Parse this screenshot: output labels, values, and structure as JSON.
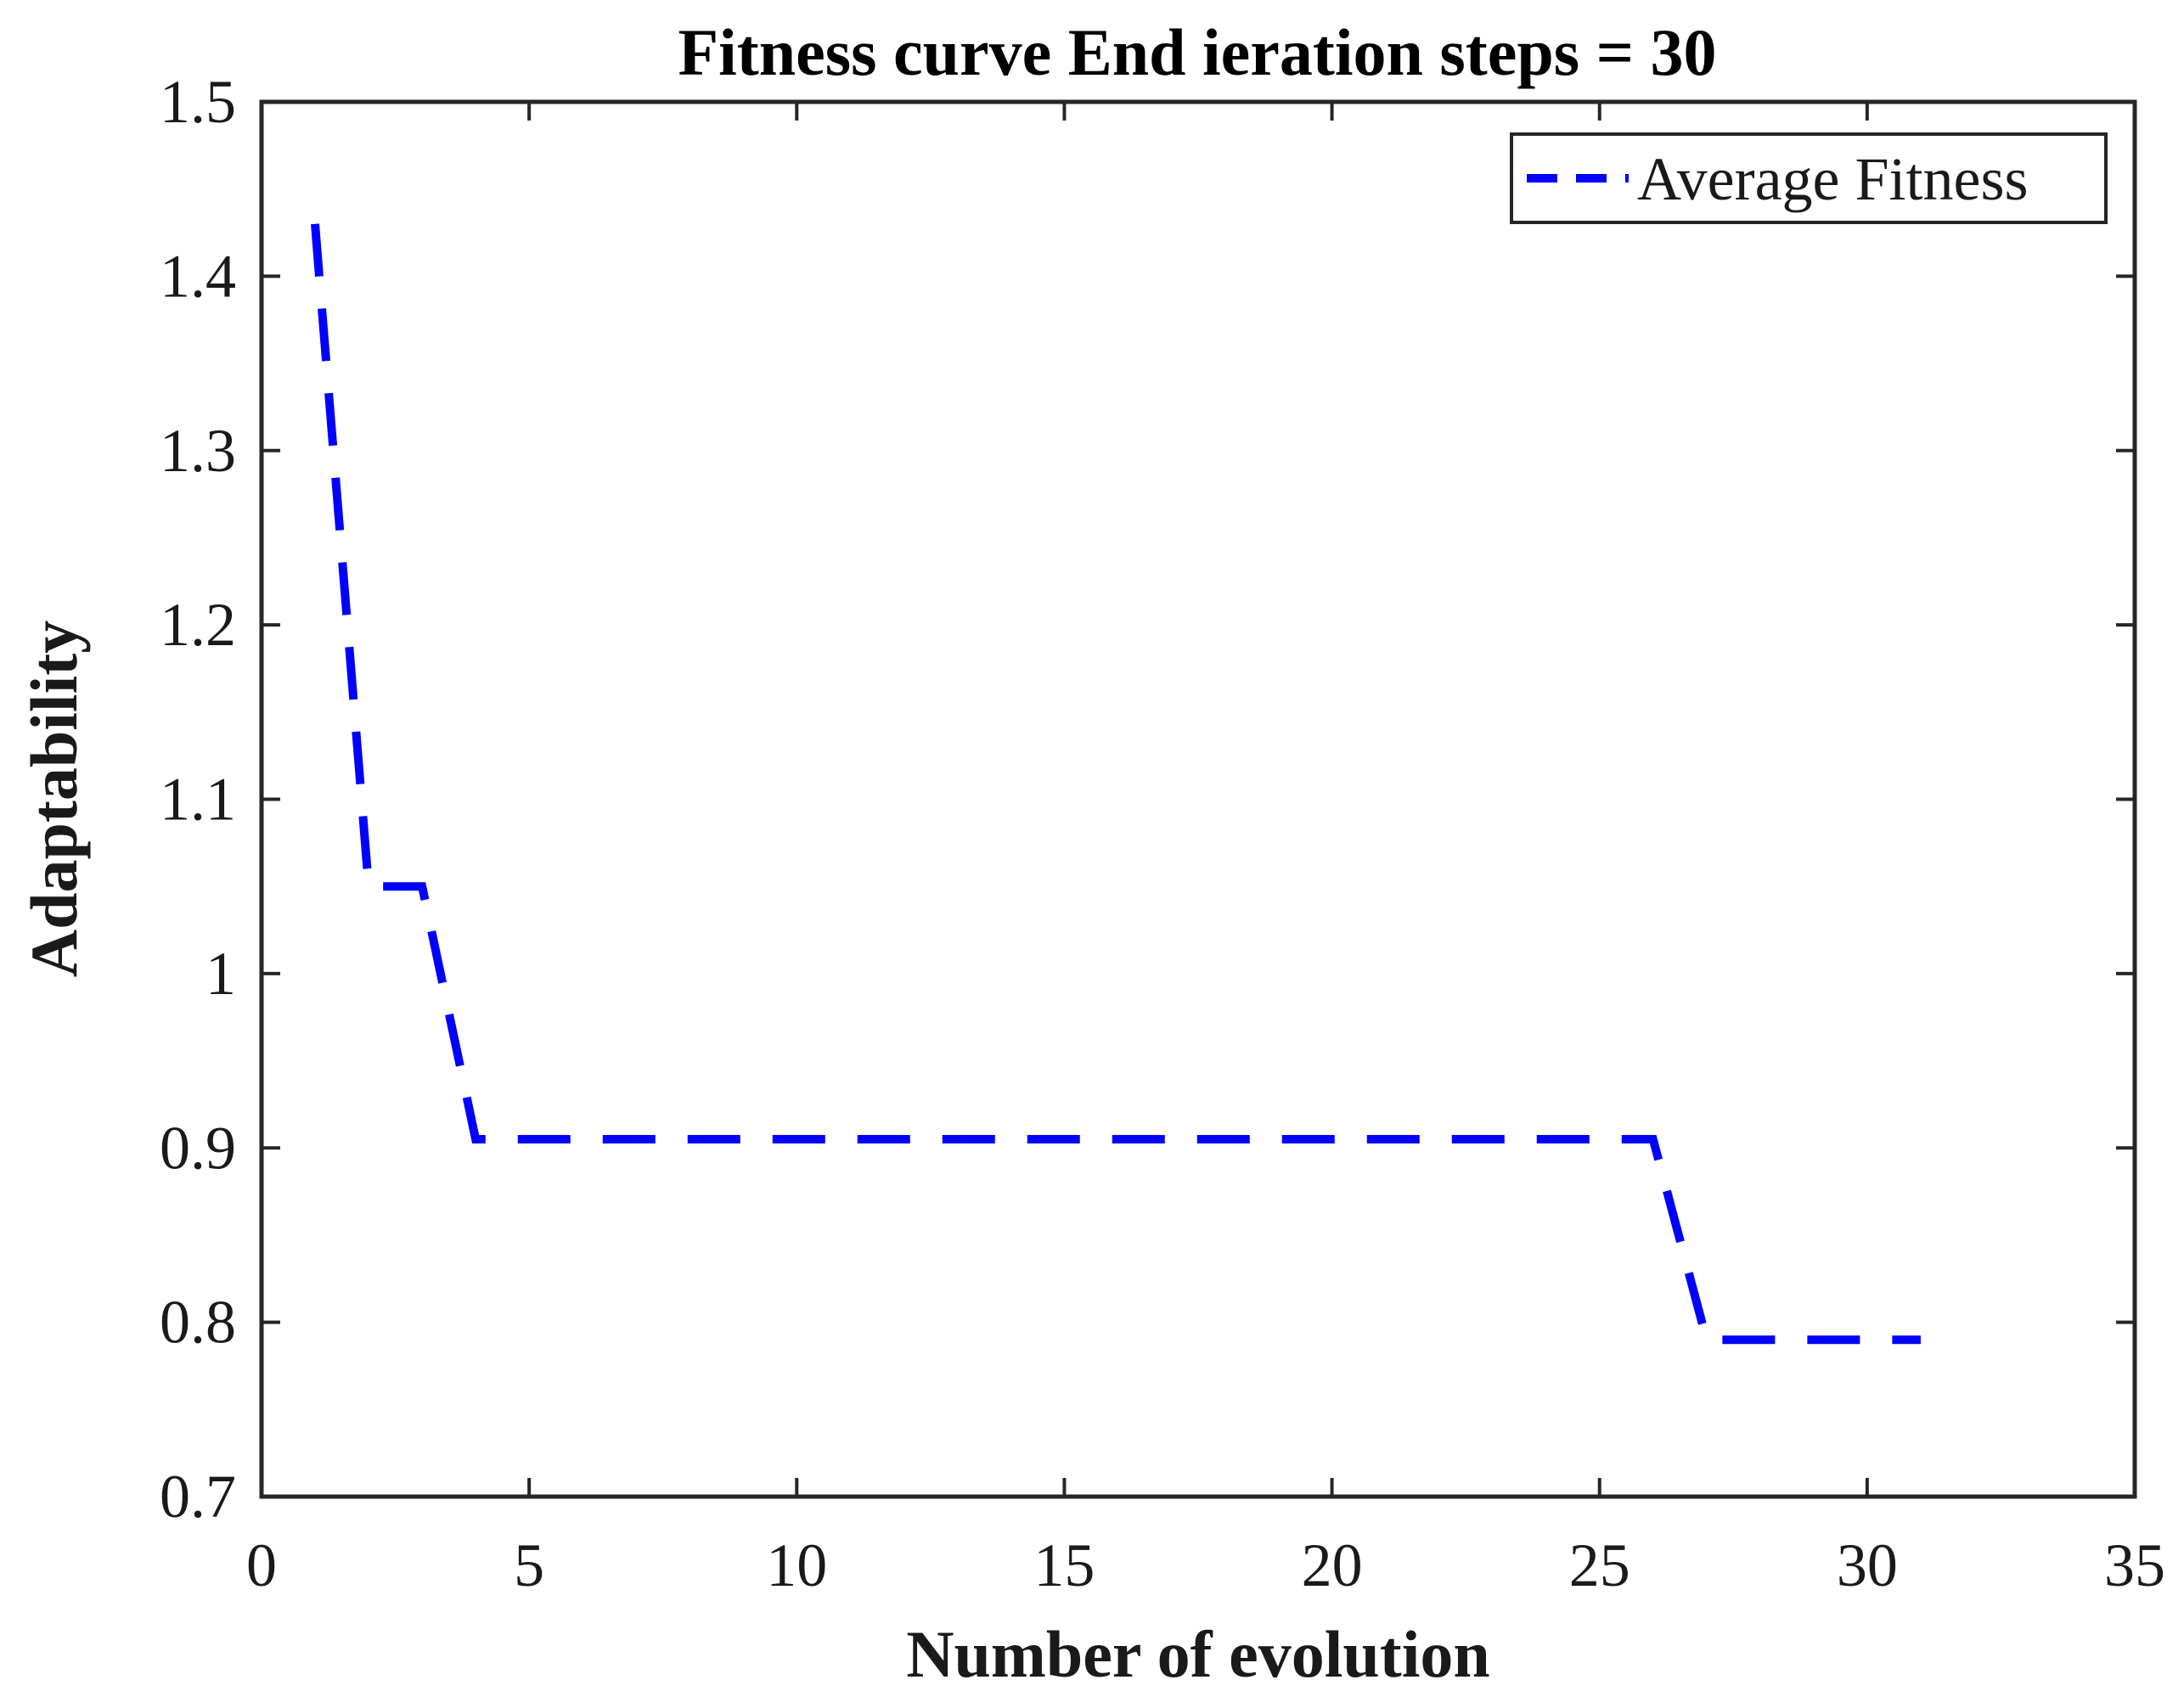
{
  "chart_data": {
    "type": "line",
    "title": "Fitness curve End ieration steps = 30",
    "xlabel": "Number of evolution",
    "ylabel": "Adaptability",
    "xlim": [
      0,
      35
    ],
    "ylim": [
      0.7,
      1.5
    ],
    "xticks": [
      0,
      5,
      10,
      15,
      20,
      25,
      30,
      35
    ],
    "yticks": [
      0.7,
      0.8,
      0.9,
      1.0,
      1.1,
      1.2,
      1.3,
      1.4,
      1.5
    ],
    "xtick_labels": [
      "0",
      "5",
      "10",
      "15",
      "20",
      "25",
      "30",
      "35"
    ],
    "ytick_labels": [
      "0.7",
      "0.8",
      "0.9",
      "1",
      "1.1",
      "1.2",
      "1.3",
      "1.4",
      "1.5"
    ],
    "grid": false,
    "legend_position": "top-right",
    "series": [
      {
        "name": "Average Fitness",
        "color": "#0000ff",
        "line_style": "dashed",
        "x": [
          1,
          2,
          3,
          4,
          5,
          6,
          7,
          8,
          9,
          10,
          11,
          12,
          13,
          14,
          15,
          16,
          17,
          18,
          19,
          20,
          21,
          22,
          23,
          24,
          25,
          26,
          27,
          28,
          29,
          30,
          31
        ],
        "y": [
          1.43,
          1.05,
          1.05,
          0.905,
          0.905,
          0.905,
          0.905,
          0.905,
          0.905,
          0.905,
          0.905,
          0.905,
          0.905,
          0.905,
          0.905,
          0.905,
          0.905,
          0.905,
          0.905,
          0.905,
          0.905,
          0.905,
          0.905,
          0.905,
          0.905,
          0.905,
          0.79,
          0.79,
          0.79,
          0.79,
          0.79
        ]
      }
    ]
  }
}
